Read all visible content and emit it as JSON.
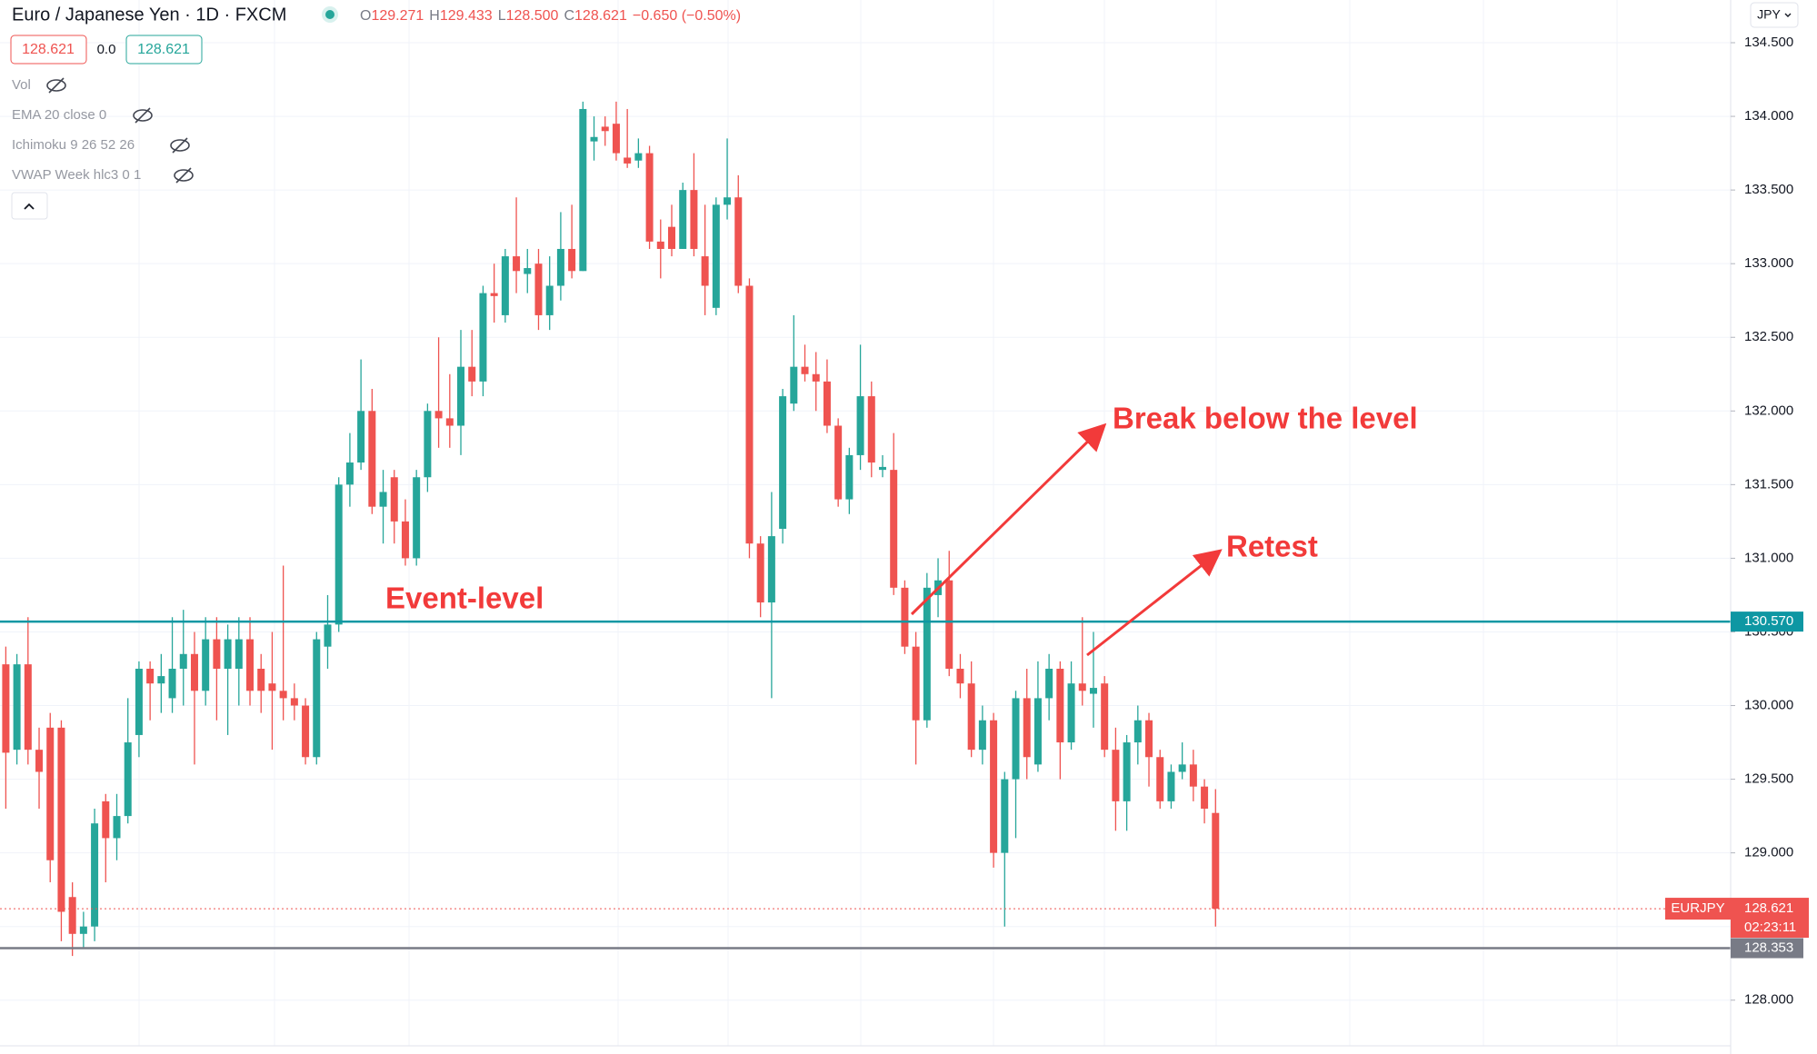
{
  "header": {
    "title": "Euro / Japanese Yen · 1D · FXCM",
    "ohlc": [
      {
        "key": "O",
        "value": "129.271"
      },
      {
        "key": "H",
        "value": "129.433"
      },
      {
        "key": "L",
        "value": "128.500"
      },
      {
        "key": "C",
        "value": "128.621"
      }
    ],
    "change": "−0.650 (−0.50%)",
    "bid": "128.621",
    "spread": "0.0",
    "ask": "128.621",
    "currency": "JPY"
  },
  "indicators": [
    "Vol",
    "EMA 20 close 0",
    "Ichimoku 9 26 52 26",
    "VWAP Week hlc3 0 1"
  ],
  "chart_data": {
    "type": "candlestick",
    "up_color": "#26a69a",
    "down_color": "#ef5350",
    "ylim": [
      127.69,
      134.79
    ],
    "yticks": [
      {
        "value": 128,
        "label": "128.000"
      },
      {
        "value": 128.5,
        "label": "128.500"
      },
      {
        "value": 129,
        "label": "129.000"
      },
      {
        "value": 129.5,
        "label": "129.500"
      },
      {
        "value": 130,
        "label": "130.000"
      },
      {
        "value": 130.5,
        "label": "130.500"
      },
      {
        "value": 131,
        "label": "131.000"
      },
      {
        "value": 131.5,
        "label": "131.500"
      },
      {
        "value": 132,
        "label": "132.000"
      },
      {
        "value": 132.5,
        "label": "132.500"
      },
      {
        "value": 133,
        "label": "133.000"
      },
      {
        "value": 133.5,
        "label": "133.500"
      },
      {
        "value": 134,
        "label": "134.000"
      },
      {
        "value": 134.5,
        "label": "134.500"
      }
    ],
    "grid": true,
    "ohlc": [
      [
        130.28,
        130.4,
        129.3,
        129.68
      ],
      [
        129.7,
        130.35,
        129.6,
        130.28
      ],
      [
        130.28,
        130.6,
        129.6,
        129.7
      ],
      [
        129.7,
        129.85,
        129.3,
        129.55
      ],
      [
        129.85,
        129.95,
        128.8,
        128.95
      ],
      [
        129.85,
        129.9,
        128.4,
        128.6
      ],
      [
        128.7,
        128.8,
        128.3,
        128.45
      ],
      [
        128.45,
        128.6,
        128.35,
        128.5
      ],
      [
        128.5,
        129.3,
        128.4,
        129.2
      ],
      [
        129.35,
        129.4,
        128.8,
        129.1
      ],
      [
        129.1,
        129.4,
        128.95,
        129.25
      ],
      [
        129.25,
        130.05,
        129.2,
        129.75
      ],
      [
        129.8,
        130.3,
        129.65,
        130.25
      ],
      [
        130.25,
        130.3,
        129.9,
        130.15
      ],
      [
        130.15,
        130.35,
        129.95,
        130.2
      ],
      [
        130.05,
        130.6,
        129.95,
        130.25
      ],
      [
        130.25,
        130.65,
        130.0,
        130.35
      ],
      [
        130.35,
        130.5,
        129.6,
        130.1
      ],
      [
        130.1,
        130.6,
        130.0,
        130.45
      ],
      [
        130.45,
        130.6,
        129.9,
        130.25
      ],
      [
        130.25,
        130.55,
        129.8,
        130.45
      ],
      [
        130.25,
        130.6,
        130.0,
        130.45
      ],
      [
        130.45,
        130.6,
        130.0,
        130.1
      ],
      [
        130.25,
        130.35,
        129.95,
        130.1
      ],
      [
        130.15,
        130.5,
        129.7,
        130.1
      ],
      [
        130.1,
        130.95,
        129.9,
        130.05
      ],
      [
        130.05,
        130.15,
        129.9,
        130.0
      ],
      [
        130.0,
        130.05,
        129.6,
        129.65
      ],
      [
        129.65,
        130.5,
        129.6,
        130.45
      ],
      [
        130.4,
        130.75,
        130.25,
        130.55
      ],
      [
        130.55,
        131.55,
        130.5,
        131.5
      ],
      [
        131.5,
        131.85,
        131.35,
        131.65
      ],
      [
        131.65,
        132.35,
        131.6,
        132.0
      ],
      [
        132.0,
        132.15,
        131.3,
        131.35
      ],
      [
        131.35,
        131.6,
        131.1,
        131.45
      ],
      [
        131.55,
        131.6,
        131.1,
        131.25
      ],
      [
        131.25,
        131.4,
        130.95,
        131.0
      ],
      [
        131.0,
        131.6,
        130.95,
        131.55
      ],
      [
        131.55,
        132.05,
        131.45,
        132.0
      ],
      [
        132.0,
        132.5,
        131.75,
        131.95
      ],
      [
        131.95,
        132.25,
        131.75,
        131.9
      ],
      [
        131.9,
        132.55,
        131.7,
        132.3
      ],
      [
        132.3,
        132.55,
        132.1,
        132.2
      ],
      [
        132.2,
        132.85,
        132.1,
        132.8
      ],
      [
        132.8,
        133.0,
        132.6,
        132.78
      ],
      [
        132.65,
        133.1,
        132.6,
        133.05
      ],
      [
        133.05,
        133.45,
        132.8,
        132.95
      ],
      [
        132.93,
        133.1,
        132.8,
        132.97
      ],
      [
        133.0,
        133.1,
        132.55,
        132.65
      ],
      [
        132.65,
        133.05,
        132.55,
        132.85
      ],
      [
        132.85,
        133.35,
        132.75,
        133.1
      ],
      [
        133.1,
        133.4,
        132.9,
        132.95
      ],
      [
        132.95,
        134.1,
        132.95,
        134.05
      ],
      [
        133.83,
        134.0,
        133.7,
        133.86
      ],
      [
        133.93,
        134.0,
        133.8,
        133.9
      ],
      [
        133.95,
        134.1,
        133.7,
        133.75
      ],
      [
        133.72,
        134.05,
        133.65,
        133.68
      ],
      [
        133.7,
        133.85,
        133.65,
        133.75
      ],
      [
        133.75,
        133.8,
        133.1,
        133.15
      ],
      [
        133.15,
        133.3,
        132.9,
        133.1
      ],
      [
        133.25,
        133.4,
        133.05,
        133.1
      ],
      [
        133.1,
        133.55,
        133.1,
        133.5
      ],
      [
        133.5,
        133.75,
        133.05,
        133.1
      ],
      [
        133.05,
        133.4,
        132.65,
        132.85
      ],
      [
        132.7,
        133.45,
        132.65,
        133.4
      ],
      [
        133.4,
        133.85,
        133.3,
        133.45
      ],
      [
        133.45,
        133.6,
        132.8,
        132.85
      ],
      [
        132.85,
        132.9,
        131.0,
        131.1
      ],
      [
        131.1,
        131.15,
        130.6,
        130.7
      ],
      [
        130.7,
        131.45,
        130.05,
        131.15
      ],
      [
        131.2,
        132.15,
        131.1,
        132.1
      ],
      [
        132.05,
        132.65,
        132.0,
        132.3
      ],
      [
        132.3,
        132.45,
        132.2,
        132.25
      ],
      [
        132.25,
        132.4,
        132.0,
        132.2
      ],
      [
        132.2,
        132.35,
        131.85,
        131.9
      ],
      [
        131.9,
        131.95,
        131.35,
        131.4
      ],
      [
        131.4,
        131.75,
        131.3,
        131.7
      ],
      [
        131.7,
        132.45,
        131.6,
        132.1
      ],
      [
        132.1,
        132.2,
        131.55,
        131.65
      ],
      [
        131.6,
        131.7,
        131.55,
        131.62
      ],
      [
        131.6,
        131.85,
        130.75,
        130.8
      ],
      [
        130.8,
        130.85,
        130.35,
        130.4
      ],
      [
        130.4,
        130.5,
        129.6,
        129.9
      ],
      [
        129.9,
        130.9,
        129.85,
        130.8
      ],
      [
        130.75,
        131.0,
        130.6,
        130.85
      ],
      [
        130.85,
        131.05,
        130.2,
        130.25
      ],
      [
        130.25,
        130.35,
        130.05,
        130.15
      ],
      [
        130.15,
        130.3,
        129.65,
        129.7
      ],
      [
        129.7,
        130.0,
        129.6,
        129.9
      ],
      [
        129.9,
        129.95,
        128.9,
        129.0
      ],
      [
        129.0,
        129.55,
        128.5,
        129.5
      ],
      [
        129.5,
        130.1,
        129.1,
        130.05
      ],
      [
        130.05,
        130.25,
        129.5,
        129.65
      ],
      [
        129.6,
        130.3,
        129.55,
        130.05
      ],
      [
        130.05,
        130.35,
        129.9,
        130.25
      ],
      [
        130.25,
        130.3,
        129.5,
        129.75
      ],
      [
        129.75,
        130.3,
        129.7,
        130.15
      ],
      [
        130.15,
        130.6,
        130.0,
        130.1
      ],
      [
        130.08,
        130.5,
        129.85,
        130.12
      ],
      [
        130.15,
        130.2,
        129.65,
        129.7
      ],
      [
        129.7,
        129.85,
        129.15,
        129.35
      ],
      [
        129.35,
        129.8,
        129.15,
        129.75
      ],
      [
        129.75,
        130.0,
        129.6,
        129.9
      ],
      [
        129.9,
        129.95,
        129.45,
        129.65
      ],
      [
        129.65,
        129.7,
        129.3,
        129.35
      ],
      [
        129.35,
        129.6,
        129.3,
        129.55
      ],
      [
        129.55,
        129.75,
        129.5,
        129.6
      ],
      [
        129.6,
        129.7,
        129.35,
        129.45
      ],
      [
        129.45,
        129.5,
        129.2,
        129.3
      ],
      [
        129.271,
        129.433,
        128.5,
        128.621
      ]
    ],
    "levels": [
      {
        "value": 130.57,
        "label": "130.570",
        "color": "#0e97a3"
      },
      {
        "value": 128.353,
        "label": "128.353",
        "color": "#787b86"
      }
    ],
    "last_price": {
      "value": 128.621,
      "label": "128.621",
      "symbol": "EURJPY",
      "countdown": "02:23:11",
      "color": "#ef5350"
    },
    "annotations": [
      "Event-level",
      "Break below the level",
      "Retest"
    ]
  }
}
